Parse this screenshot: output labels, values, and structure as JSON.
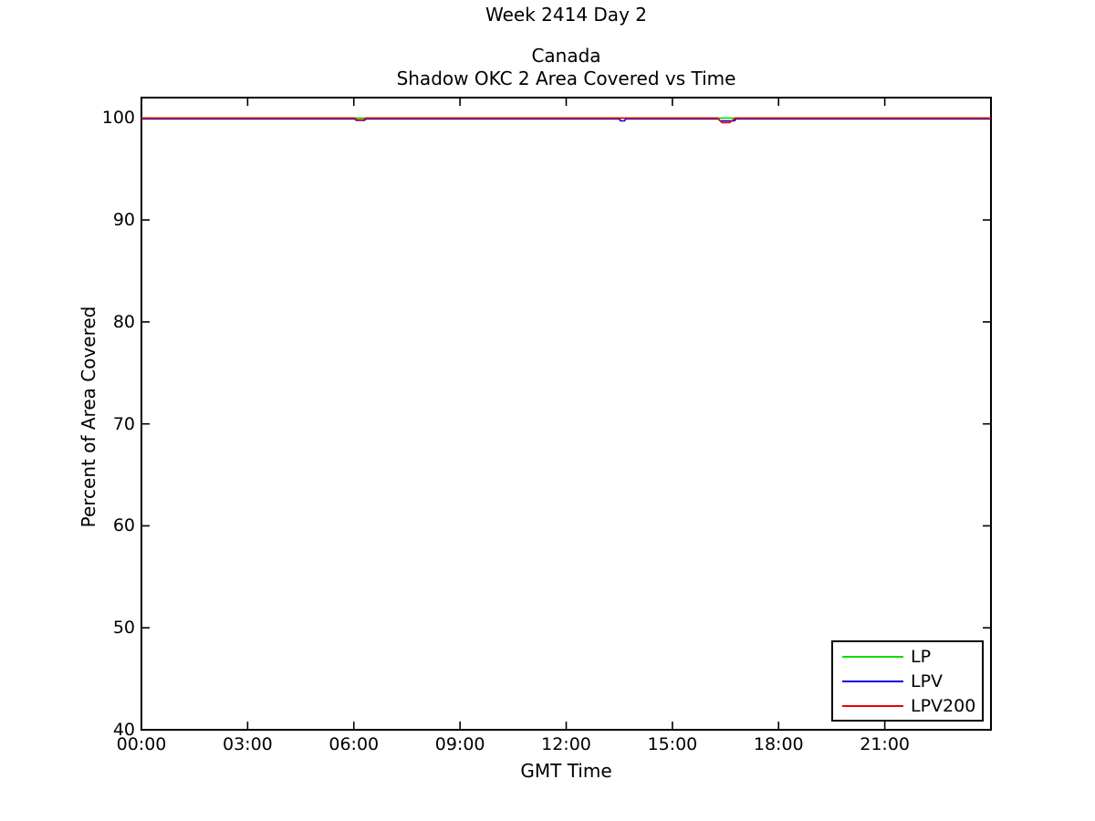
{
  "figure_title": "Week 2414 Day 2",
  "axes_title_line1": "Canada",
  "axes_title_line2": "Shadow OKC 2 Area Covered vs Time",
  "axis_labels": {
    "x": "GMT Time",
    "y": "Percent of Area Covered"
  },
  "legend": {
    "items": [
      {
        "label": "LP",
        "color": "#00dd00"
      },
      {
        "label": "LPV",
        "color": "#0000e0"
      },
      {
        "label": "LPV200",
        "color": "#ee0000"
      }
    ]
  },
  "chart_data": {
    "type": "line",
    "title": "Week 2414 Day 2 — Canada — Shadow OKC 2 Area Covered vs Time",
    "xlabel": "GMT Time",
    "ylabel": "Percent of Area Covered",
    "xlim_hours": [
      0,
      24
    ],
    "ylim": [
      40,
      102
    ],
    "x_ticks_hours": [
      0,
      3,
      6,
      9,
      12,
      15,
      18,
      21
    ],
    "x_tick_labels": [
      "00:00",
      "03:00",
      "06:00",
      "09:00",
      "12:00",
      "15:00",
      "18:00",
      "21:00"
    ],
    "y_ticks": [
      40,
      50,
      60,
      70,
      80,
      90,
      100
    ],
    "grid": false,
    "legend_position": "bottom-right",
    "axis_color": "#000000",
    "series": [
      {
        "name": "LP",
        "color": "#00dd00",
        "points": [
          [
            0,
            100
          ],
          [
            24,
            100
          ]
        ]
      },
      {
        "name": "LPV",
        "color": "#0000e0",
        "points": [
          [
            0,
            100
          ],
          [
            6.02,
            100
          ],
          [
            6.07,
            99.85
          ],
          [
            6.3,
            99.85
          ],
          [
            6.35,
            100
          ],
          [
            13.5,
            100
          ],
          [
            13.53,
            99.8
          ],
          [
            13.65,
            99.8
          ],
          [
            13.68,
            100
          ],
          [
            16.3,
            100
          ],
          [
            16.35,
            99.8
          ],
          [
            16.75,
            99.8
          ],
          [
            16.8,
            100
          ],
          [
            24,
            100
          ]
        ]
      },
      {
        "name": "LPV200",
        "color": "#ee0000",
        "points": [
          [
            0,
            100
          ],
          [
            6.03,
            100
          ],
          [
            6.08,
            99.82
          ],
          [
            6.28,
            99.82
          ],
          [
            6.33,
            100
          ],
          [
            16.27,
            100
          ],
          [
            16.4,
            99.55
          ],
          [
            16.62,
            99.55
          ],
          [
            16.78,
            100
          ],
          [
            24,
            100
          ]
        ]
      }
    ]
  }
}
